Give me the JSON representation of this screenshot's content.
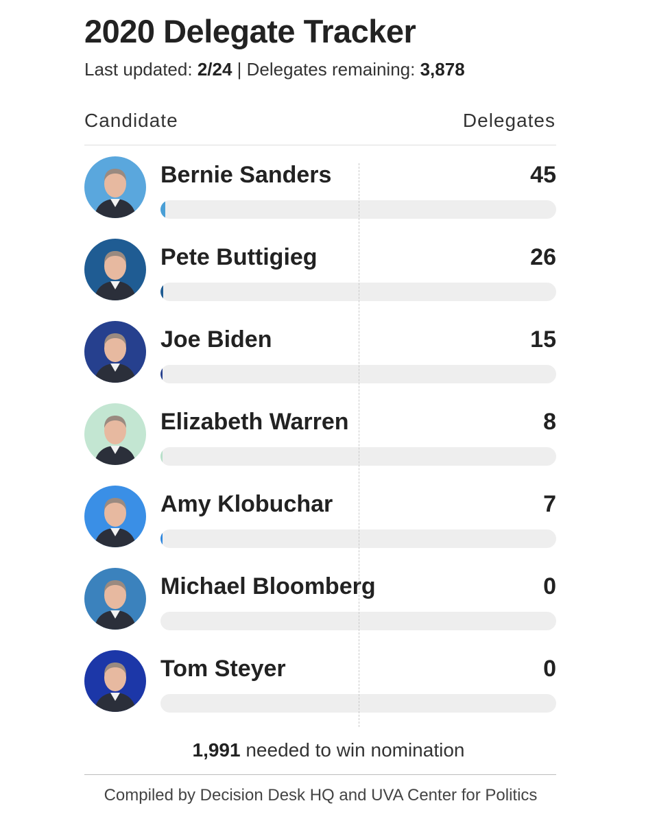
{
  "header": {
    "title": "2020 Delegate Tracker",
    "last_updated_label": "Last updated:",
    "last_updated_value": "2/24",
    "separator": "|",
    "remaining_label": "Delegates remaining:",
    "remaining_value": "3,878"
  },
  "columns": {
    "left": "Candidate",
    "right": "Delegates"
  },
  "chart_data": {
    "type": "bar",
    "orientation": "horizontal",
    "title": "2020 Delegate Tracker",
    "categories": [
      "Bernie Sanders",
      "Pete Buttigieg",
      "Joe Biden",
      "Elizabeth Warren",
      "Amy Klobuchar",
      "Michael Bloomberg",
      "Tom Steyer"
    ],
    "values": [
      45,
      26,
      15,
      8,
      7,
      0,
      0
    ],
    "value_labels": [
      "45",
      "26",
      "15",
      "8",
      "7",
      "0",
      "0"
    ],
    "xlim": [
      0,
      3979
    ],
    "reference_line": {
      "value": 1991,
      "label": "needed to win nomination"
    },
    "bar_colors": [
      "#4a9fd6",
      "#1f5c93",
      "#26408e",
      "#b7e0c9",
      "#2d86de",
      "#2f7cbf",
      "#1c37a8"
    ],
    "avatar_colors": [
      "#5aa7dd",
      "#1f5c93",
      "#26408e",
      "#c3e6d2",
      "#3a8fe6",
      "#3b82bd",
      "#1c37a8"
    ],
    "track_color": "#eeeeee"
  },
  "footer": {
    "needed_value": "1,991",
    "needed_text": " needed to win nomination",
    "source": "Compiled by Decision Desk HQ and UVA Center for Politics"
  }
}
